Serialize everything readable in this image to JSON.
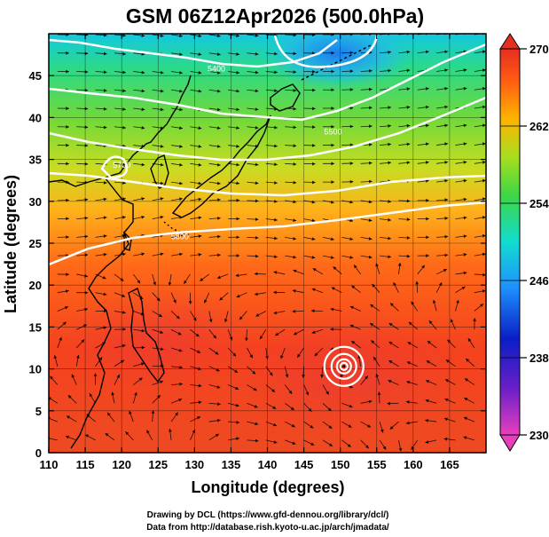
{
  "title": "GSM 06Z12Apr2026 (500.0hPa)",
  "x_axis": {
    "label": "Longitude (degrees)",
    "ticks": [
      "110",
      "115",
      "120",
      "125",
      "130",
      "135",
      "140",
      "145",
      "150",
      "155",
      "160",
      "165"
    ],
    "range": [
      110,
      170
    ]
  },
  "y_axis": {
    "label": "Latitude  (degrees)",
    "ticks": [
      "0",
      "5",
      "10",
      "15",
      "20",
      "25",
      "30",
      "35",
      "40",
      "45"
    ],
    "range": [
      0,
      50
    ]
  },
  "colorbar": {
    "ticks": [
      "270",
      "262",
      "254",
      "246",
      "238",
      "230"
    ],
    "range": [
      230,
      270
    ],
    "colors": [
      "#e93fbd",
      "#0a1ec7",
      "#1e90ff",
      "#12dccf",
      "#3dd645",
      "#a8df1e",
      "#ffb300",
      "#ff5a14",
      "#e62e1e"
    ]
  },
  "contours": [
    {
      "label": "5400",
      "lon": 133,
      "lat": 45.5
    },
    {
      "label": "5500",
      "lon": 149,
      "lat": 38
    },
    {
      "label": "5700",
      "lon": 120,
      "lat": 34
    },
    {
      "label": "5800",
      "lon": 128,
      "lat": 25.5
    }
  ],
  "typhoon": {
    "lon": 150.5,
    "lat": 10.3
  },
  "credits": [
    "Drawing by DCL (https://www.gfd-dennou.org/library/dcl/)",
    "Data from http://database.rish.kyoto-u.ac.jp/arch/jmadata/"
  ]
}
